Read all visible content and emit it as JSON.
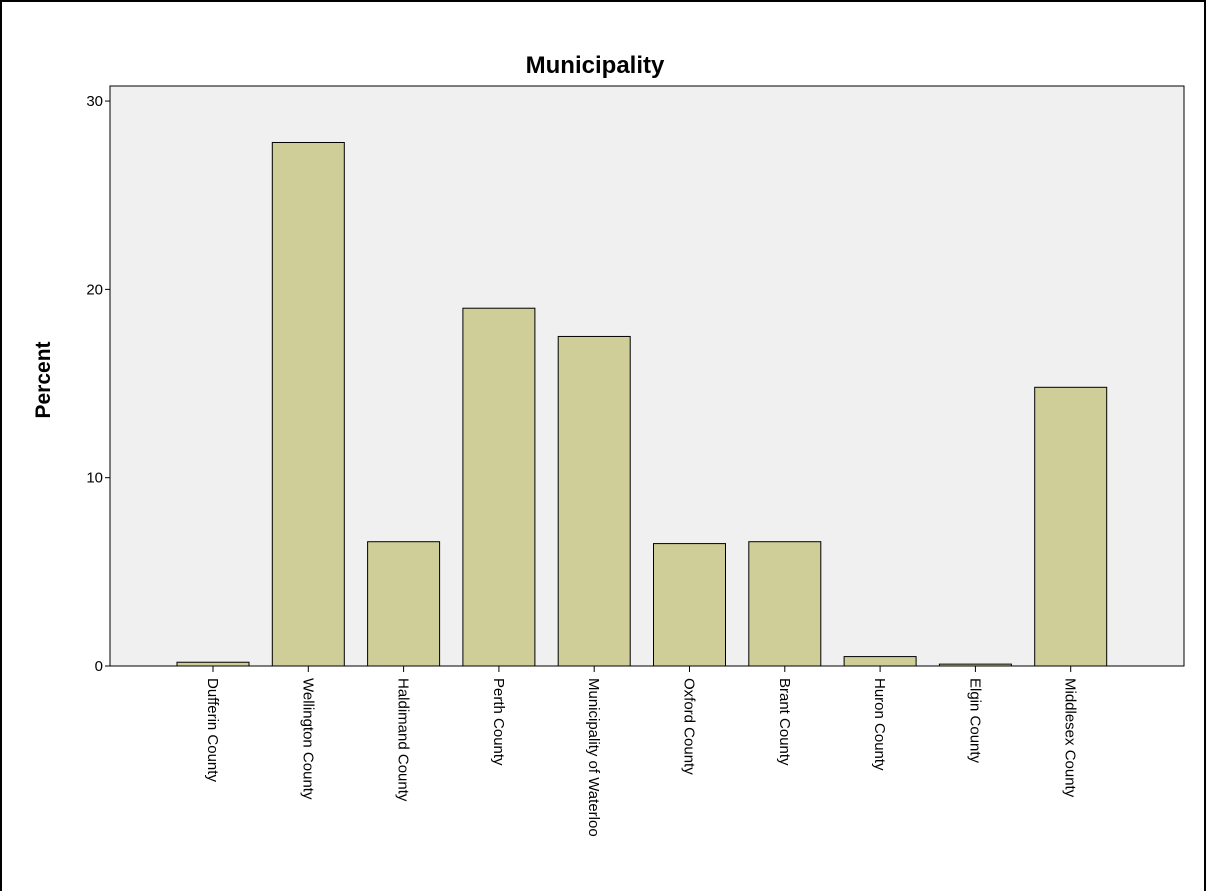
{
  "chart_data": {
    "type": "bar",
    "title": "Municipality",
    "xlabel": "",
    "ylabel": "Percent",
    "categories": [
      "Dufferin County",
      "Wellington County",
      "Haldimand County",
      "Perth County",
      "Municipality of Waterloo",
      "Oxford County",
      "Brant County",
      "Huron County",
      "Elgin County",
      "Middlesex County"
    ],
    "values": [
      0.2,
      27.8,
      6.6,
      19.0,
      17.5,
      6.5,
      6.6,
      0.5,
      0.1,
      14.8
    ],
    "ylim": [
      0,
      30.8
    ],
    "yticks": [
      0,
      10,
      20,
      30
    ],
    "grid": false,
    "legend": "none",
    "colors": {
      "bar_fill": "#d0ce98",
      "bar_stroke": "#000000",
      "plot_bg": "#f0f0f0",
      "background": "#ffffff"
    }
  }
}
